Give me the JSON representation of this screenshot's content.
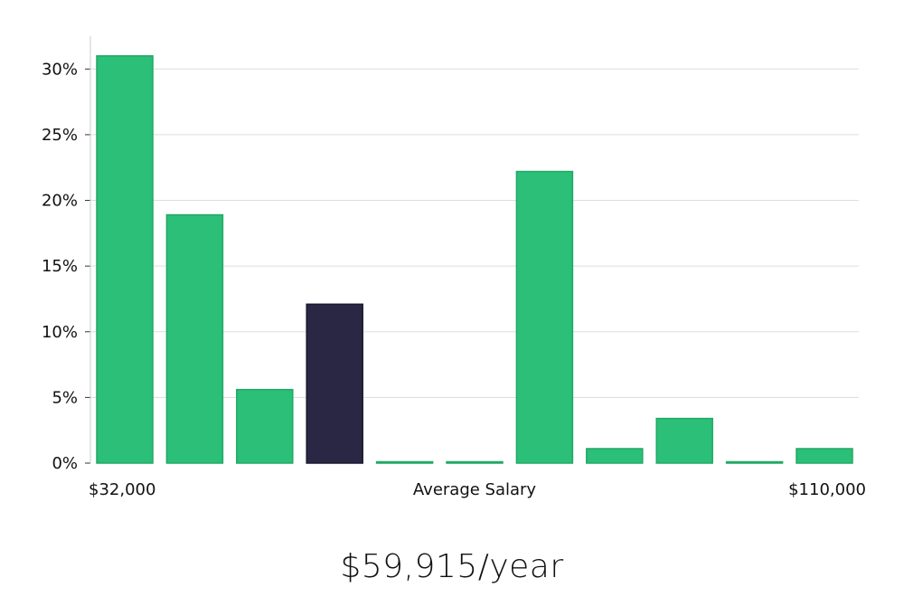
{
  "chart_data": {
    "type": "bar",
    "title": "",
    "xlabel": "Average Salary",
    "ylabel": "",
    "x_min_label": "$32,000",
    "x_max_label": "$110,000",
    "ylim": [
      0,
      32.5
    ],
    "yticks": [
      0,
      5,
      10,
      15,
      20,
      25,
      30
    ],
    "ytick_labels": [
      "0%",
      "5%",
      "10%",
      "15%",
      "20%",
      "25%",
      "30%"
    ],
    "grid": true,
    "values": [
      31,
      18.9,
      5.6,
      12.1,
      0.05,
      0.05,
      22.2,
      1.1,
      3.4,
      0.05,
      1.1
    ],
    "highlight_index": 3,
    "colors": {
      "bar": "#2bbf78",
      "bar_stroke": "#22a866",
      "highlight": "#2a2744",
      "highlight_stroke": "#1a1830",
      "grid": "#dddddd",
      "axis": "#cccccc"
    }
  },
  "headline": "$59,915/year"
}
